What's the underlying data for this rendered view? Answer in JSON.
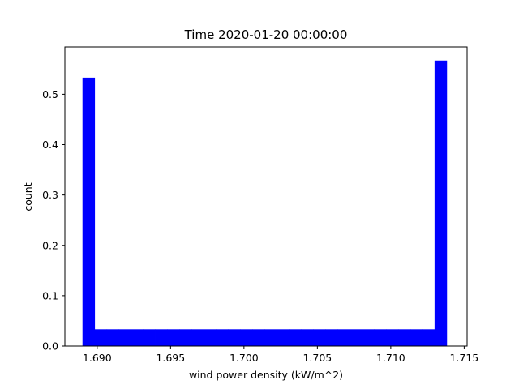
{
  "chart_data": {
    "type": "bar",
    "title": "Time 2020-01-20 00:00:00",
    "xlabel": "wind power density (kW/m^2)",
    "ylabel": "count",
    "xlim": [
      1.6878,
      1.7152
    ],
    "ylim": [
      0,
      0.594
    ],
    "xticks": [
      "1.690",
      "1.695",
      "1.700",
      "1.705",
      "1.710",
      "1.715"
    ],
    "xtick_values": [
      1.69,
      1.695,
      1.7,
      1.705,
      1.71,
      1.715
    ],
    "yticks": [
      "0.0",
      "0.1",
      "0.2",
      "0.3",
      "0.4",
      "0.5"
    ],
    "ytick_values": [
      0.0,
      0.1,
      0.2,
      0.3,
      0.4,
      0.5
    ],
    "bin_start": 1.689,
    "bin_width": 0.000827,
    "values": [
      0.533,
      0.0333,
      0.0333,
      0.0333,
      0.0333,
      0.0333,
      0.0333,
      0.0333,
      0.0333,
      0.0333,
      0.0333,
      0.0333,
      0.0333,
      0.0333,
      0.0333,
      0.0333,
      0.0333,
      0.0333,
      0.0333,
      0.0333,
      0.0333,
      0.0333,
      0.0333,
      0.0333,
      0.0333,
      0.0333,
      0.0333,
      0.0333,
      0.0333,
      0.567
    ],
    "bar_color": "#0000ff",
    "grid": false
  }
}
